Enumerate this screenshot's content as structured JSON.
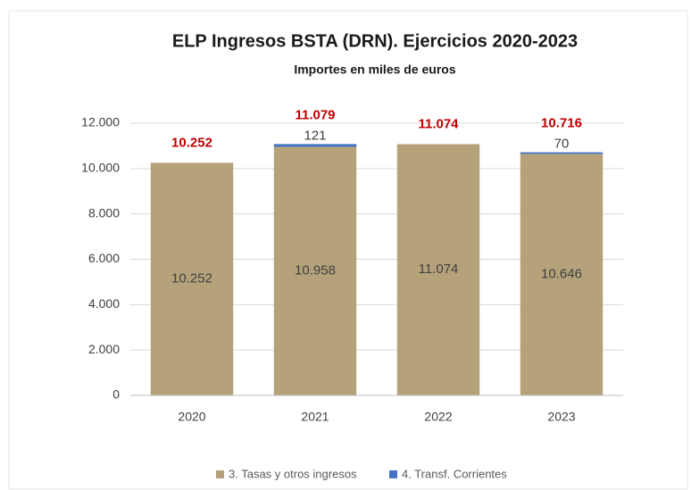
{
  "chart_data": {
    "type": "stacked_bar",
    "title": "ELP Ingresos BSTA (DRN). Ejercicios 2020-2023",
    "subtitle": "Importes en miles de euros",
    "categories": [
      "2020",
      "2021",
      "2022",
      "2023"
    ],
    "series": [
      {
        "name": "3. Tasas y otros ingresos",
        "color": "#b5a27b",
        "values": [
          10252,
          10958,
          11074,
          10646
        ],
        "value_labels": [
          "10.252",
          "10.958",
          "11.074",
          "10.646"
        ]
      },
      {
        "name": "4. Transf. Corrientes",
        "color": "#4472c4",
        "values": [
          null,
          121,
          null,
          70
        ],
        "value_labels": [
          null,
          "121",
          null,
          "70"
        ]
      }
    ],
    "totals": {
      "values": [
        10252,
        11079,
        11074,
        10716
      ],
      "value_labels": [
        "10.252",
        "11.079",
        "11.074",
        "10.716"
      ],
      "color": "#c00000"
    },
    "ylim": [
      0,
      12000
    ],
    "yticks": [
      0,
      {
        "value": 2000,
        "label": "2.000"
      },
      {
        "value": 4000,
        "label": "4.000"
      },
      {
        "value": 6000,
        "label": "6.000"
      },
      {
        "value": 8000,
        "label": "8.000"
      },
      {
        "value": 10000,
        "label": "10.000"
      },
      {
        "value": 12000,
        "label": "12.000"
      }
    ],
    "grid": true,
    "legend": "bottom"
  }
}
